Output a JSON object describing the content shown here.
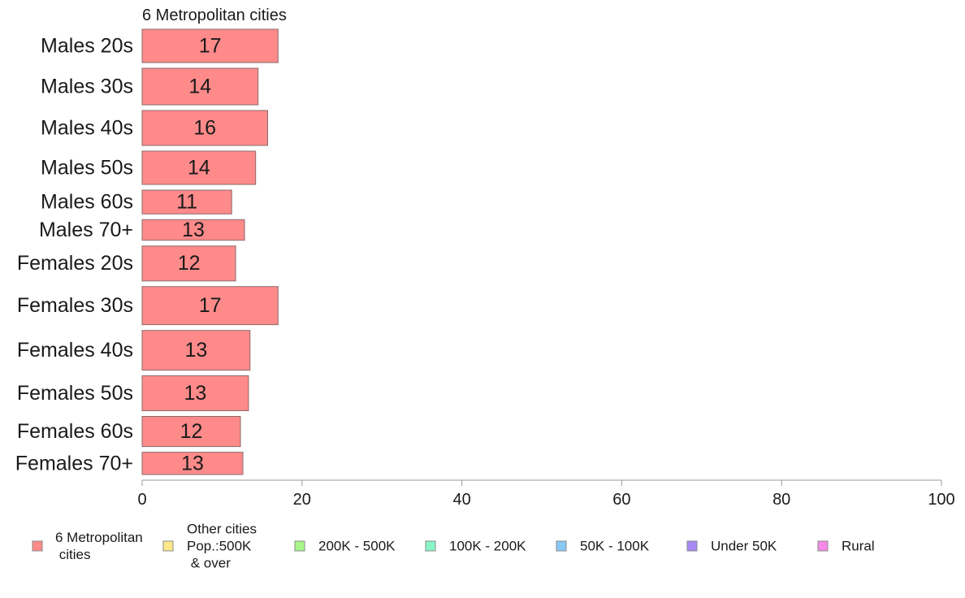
{
  "chart_data": {
    "type": "bar",
    "orientation": "horizontal",
    "title": "6 Metropolitan cities",
    "xlabel": "",
    "ylabel": "",
    "xlim": [
      0,
      100
    ],
    "x_ticks": [
      0,
      20,
      40,
      60,
      80,
      100
    ],
    "grid": false,
    "categories": [
      "Males 20s",
      "Males 30s",
      "Males 40s",
      "Males 50s",
      "Males 60s",
      "Males 70+",
      "Females 20s",
      "Females 30s",
      "Females 40s",
      "Females 50s",
      "Females 60s",
      "Females 70+"
    ],
    "series": [
      {
        "name": "6 Metropolitan cities",
        "color": "#ff8a8a",
        "values": [
          17,
          14.5,
          15.7,
          14.2,
          11.2,
          12.8,
          11.7,
          17,
          13.5,
          13.3,
          12.3,
          12.6
        ],
        "labels": [
          "17",
          "14",
          "16",
          "14",
          "11",
          "13",
          "12",
          "17",
          "13",
          "13",
          "12",
          "13"
        ]
      }
    ],
    "bar_weights": [
      42,
      46,
      44,
      42,
      30,
      26,
      44,
      48,
      50,
      44,
      38,
      28
    ],
    "legend": {
      "placement": "bottom",
      "items": [
        {
          "lines": [
            "6 Metropolitan",
            " cities"
          ],
          "color": "#ff8a8a"
        },
        {
          "lines": [
            "Other cities",
            "Pop.:500K",
            " & over"
          ],
          "color": "#ffe88a"
        },
        {
          "lines": [
            "200K - 500K"
          ],
          "color": "#a8f58a"
        },
        {
          "lines": [
            "100K - 200K"
          ],
          "color": "#8af5c4"
        },
        {
          "lines": [
            "50K - 100K"
          ],
          "color": "#8ac8f5"
        },
        {
          "lines": [
            "Under 50K"
          ],
          "color": "#a88af5"
        },
        {
          "lines": [
            "Rural"
          ],
          "color": "#f58ae6"
        }
      ]
    }
  }
}
